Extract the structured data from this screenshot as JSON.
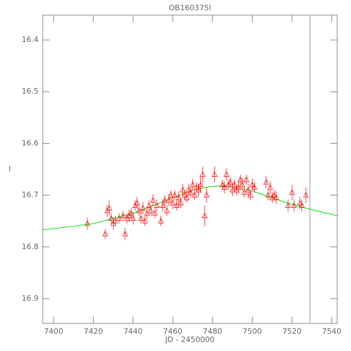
{
  "chart_data": {
    "type": "scatter",
    "title": "OB160375I",
    "x_label": "JD - 2450000",
    "y_label": "I",
    "xlim": [
      7394.5,
      7542.8
    ],
    "ylim": [
      16.948,
      16.352
    ],
    "xticks": [
      7400,
      7420,
      7440,
      7460,
      7480,
      7500,
      7520,
      7540
    ],
    "yticks": [
      16.4,
      16.5,
      16.6,
      16.7,
      16.8,
      16.9
    ],
    "points": {
      "color": "#ff0000",
      "x": [
        7417,
        7426,
        7427,
        7428,
        7429,
        7430,
        7431,
        7433,
        7435,
        7436,
        7437,
        7438,
        7439,
        7440,
        7441,
        7442,
        7443,
        7444,
        7445,
        7446,
        7447,
        7448,
        7449,
        7450,
        7451,
        7452,
        7454,
        7455,
        7456,
        7457,
        7458,
        7459,
        7460,
        7461,
        7462,
        7463,
        7464,
        7465,
        7466,
        7467,
        7468,
        7469,
        7470,
        7471,
        7472,
        7473,
        7474,
        7475,
        7476,
        7477,
        7481,
        7485,
        7486,
        7487,
        7488,
        7489,
        7490,
        7491,
        7492,
        7493,
        7494,
        7495,
        7496,
        7497,
        7498,
        7499,
        7500,
        7501,
        7507,
        7508,
        7509,
        7510,
        7511,
        7512,
        7518,
        7520,
        7521,
        7524,
        7525,
        7527
      ],
      "values": [
        16.755,
        16.775,
        16.73,
        16.725,
        16.745,
        16.755,
        16.75,
        16.745,
        16.74,
        16.775,
        16.745,
        16.74,
        16.735,
        16.745,
        16.72,
        16.715,
        16.73,
        16.745,
        16.725,
        16.75,
        16.735,
        16.72,
        16.73,
        16.71,
        16.735,
        16.72,
        16.75,
        16.72,
        16.71,
        16.73,
        16.71,
        16.7,
        16.715,
        16.7,
        16.72,
        16.705,
        16.715,
        16.69,
        16.7,
        16.705,
        16.69,
        16.695,
        16.68,
        16.7,
        16.685,
        16.69,
        16.68,
        16.66,
        16.74,
        16.7,
        16.66,
        16.68,
        16.685,
        16.66,
        16.68,
        16.675,
        16.69,
        16.68,
        16.69,
        16.685,
        16.67,
        16.68,
        16.695,
        16.67,
        16.69,
        16.7,
        16.68,
        16.685,
        16.675,
        16.7,
        16.685,
        16.705,
        16.7,
        16.705,
        16.72,
        16.695,
        16.72,
        16.715,
        16.72,
        16.7
      ],
      "errors": [
        0.012,
        0.01,
        0.012,
        0.015,
        0.01,
        0.012,
        0.01,
        0.01,
        0.01,
        0.012,
        0.01,
        0.012,
        0.01,
        0.012,
        0.01,
        0.012,
        0.01,
        0.01,
        0.012,
        0.01,
        0.012,
        0.01,
        0.01,
        0.012,
        0.01,
        0.012,
        0.01,
        0.012,
        0.01,
        0.01,
        0.012,
        0.01,
        0.012,
        0.01,
        0.01,
        0.012,
        0.01,
        0.012,
        0.01,
        0.01,
        0.012,
        0.01,
        0.012,
        0.01,
        0.01,
        0.012,
        0.015,
        0.015,
        0.02,
        0.015,
        0.015,
        0.01,
        0.012,
        0.012,
        0.01,
        0.01,
        0.012,
        0.01,
        0.01,
        0.012,
        0.01,
        0.012,
        0.01,
        0.01,
        0.012,
        0.01,
        0.012,
        0.01,
        0.012,
        0.01,
        0.012,
        0.01,
        0.01,
        0.012,
        0.012,
        0.015,
        0.012,
        0.012,
        0.012,
        0.015
      ]
    },
    "model": {
      "color": "#00e000",
      "x": [
        7394.5,
        7410,
        7420,
        7430,
        7440,
        7450,
        7460,
        7470,
        7480,
        7485,
        7490,
        7500,
        7510,
        7520,
        7530,
        7540,
        7542.8
      ],
      "values": [
        16.767,
        16.76,
        16.755,
        16.745,
        16.735,
        16.72,
        16.705,
        16.69,
        16.683,
        16.682,
        16.684,
        16.692,
        16.705,
        16.718,
        16.728,
        16.737,
        16.74
      ]
    },
    "vline": {
      "color": "#8888ff",
      "x": 7529
    }
  }
}
